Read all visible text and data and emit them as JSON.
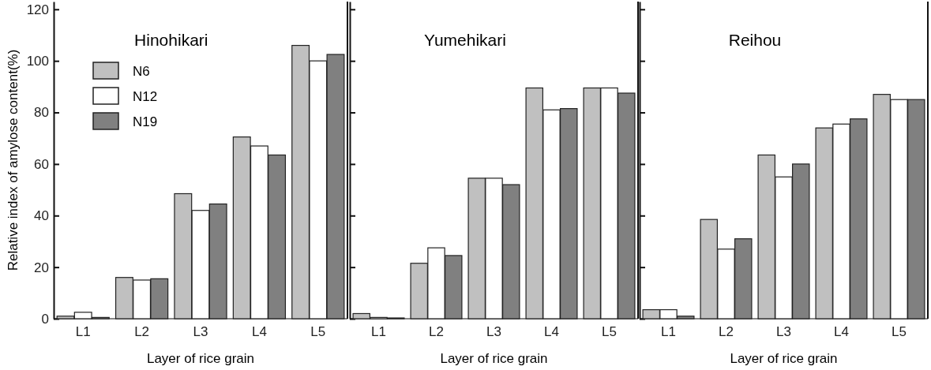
{
  "chart_data": [
    {
      "type": "bar",
      "title": "Hinohikari",
      "xlabel": "Layer of rice grain",
      "ylabel": "Relative index of amylose content(%)",
      "categories": [
        "L1",
        "L2",
        "L3",
        "L4",
        "L5"
      ],
      "series": [
        {
          "name": "N6",
          "color": "#c0c0c0",
          "values": [
            1,
            16,
            48.5,
            70.5,
            106
          ]
        },
        {
          "name": "N12",
          "color": "#ffffff",
          "values": [
            2.5,
            15,
            42,
            67,
            100
          ]
        },
        {
          "name": "N19",
          "color": "#808080",
          "values": [
            0.5,
            15.5,
            44.5,
            63.5,
            102.5
          ]
        }
      ],
      "ylim": [
        0,
        123
      ],
      "yticks": [
        0,
        20,
        40,
        60,
        80,
        100,
        120
      ],
      "legend": "top left",
      "grid": false
    },
    {
      "type": "bar",
      "title": "Yumehikari",
      "xlabel": "Layer of rice grain",
      "categories": [
        "L1",
        "L2",
        "L3",
        "L4",
        "L5"
      ],
      "series": [
        {
          "color": "#c0c0c0",
          "values": [
            2,
            21.5,
            54.5,
            89.5,
            89.5
          ]
        },
        {
          "color": "#ffffff",
          "values": [
            0.5,
            27.5,
            54.5,
            81,
            89.5
          ]
        },
        {
          "color": "#808080",
          "values": [
            0.3,
            24.5,
            52,
            81.5,
            87.5
          ]
        }
      ],
      "ylim": [
        0,
        123
      ],
      "yticks": [
        0,
        20,
        40,
        60,
        80,
        100,
        120
      ],
      "tick_labels": "x",
      "legend": false,
      "grid": false
    },
    {
      "type": "bar",
      "title": "Reihou",
      "xlabel": "Layer of rice grain",
      "categories": [
        "L1",
        "L2",
        "L3",
        "L4",
        "L5"
      ],
      "series": [
        {
          "color": "#c0c0c0",
          "values": [
            3.5,
            38.5,
            63.5,
            74,
            87
          ]
        },
        {
          "color": "#ffffff",
          "values": [
            3.5,
            27,
            55,
            75.5,
            85
          ]
        },
        {
          "color": "#808080",
          "values": [
            1,
            31,
            60,
            77.5,
            85
          ]
        }
      ],
      "ylim": [
        0,
        123
      ],
      "yticks": [
        0,
        20,
        40,
        60,
        80,
        100,
        120
      ],
      "tick_labels": "x",
      "legend": false,
      "grid": false
    }
  ]
}
